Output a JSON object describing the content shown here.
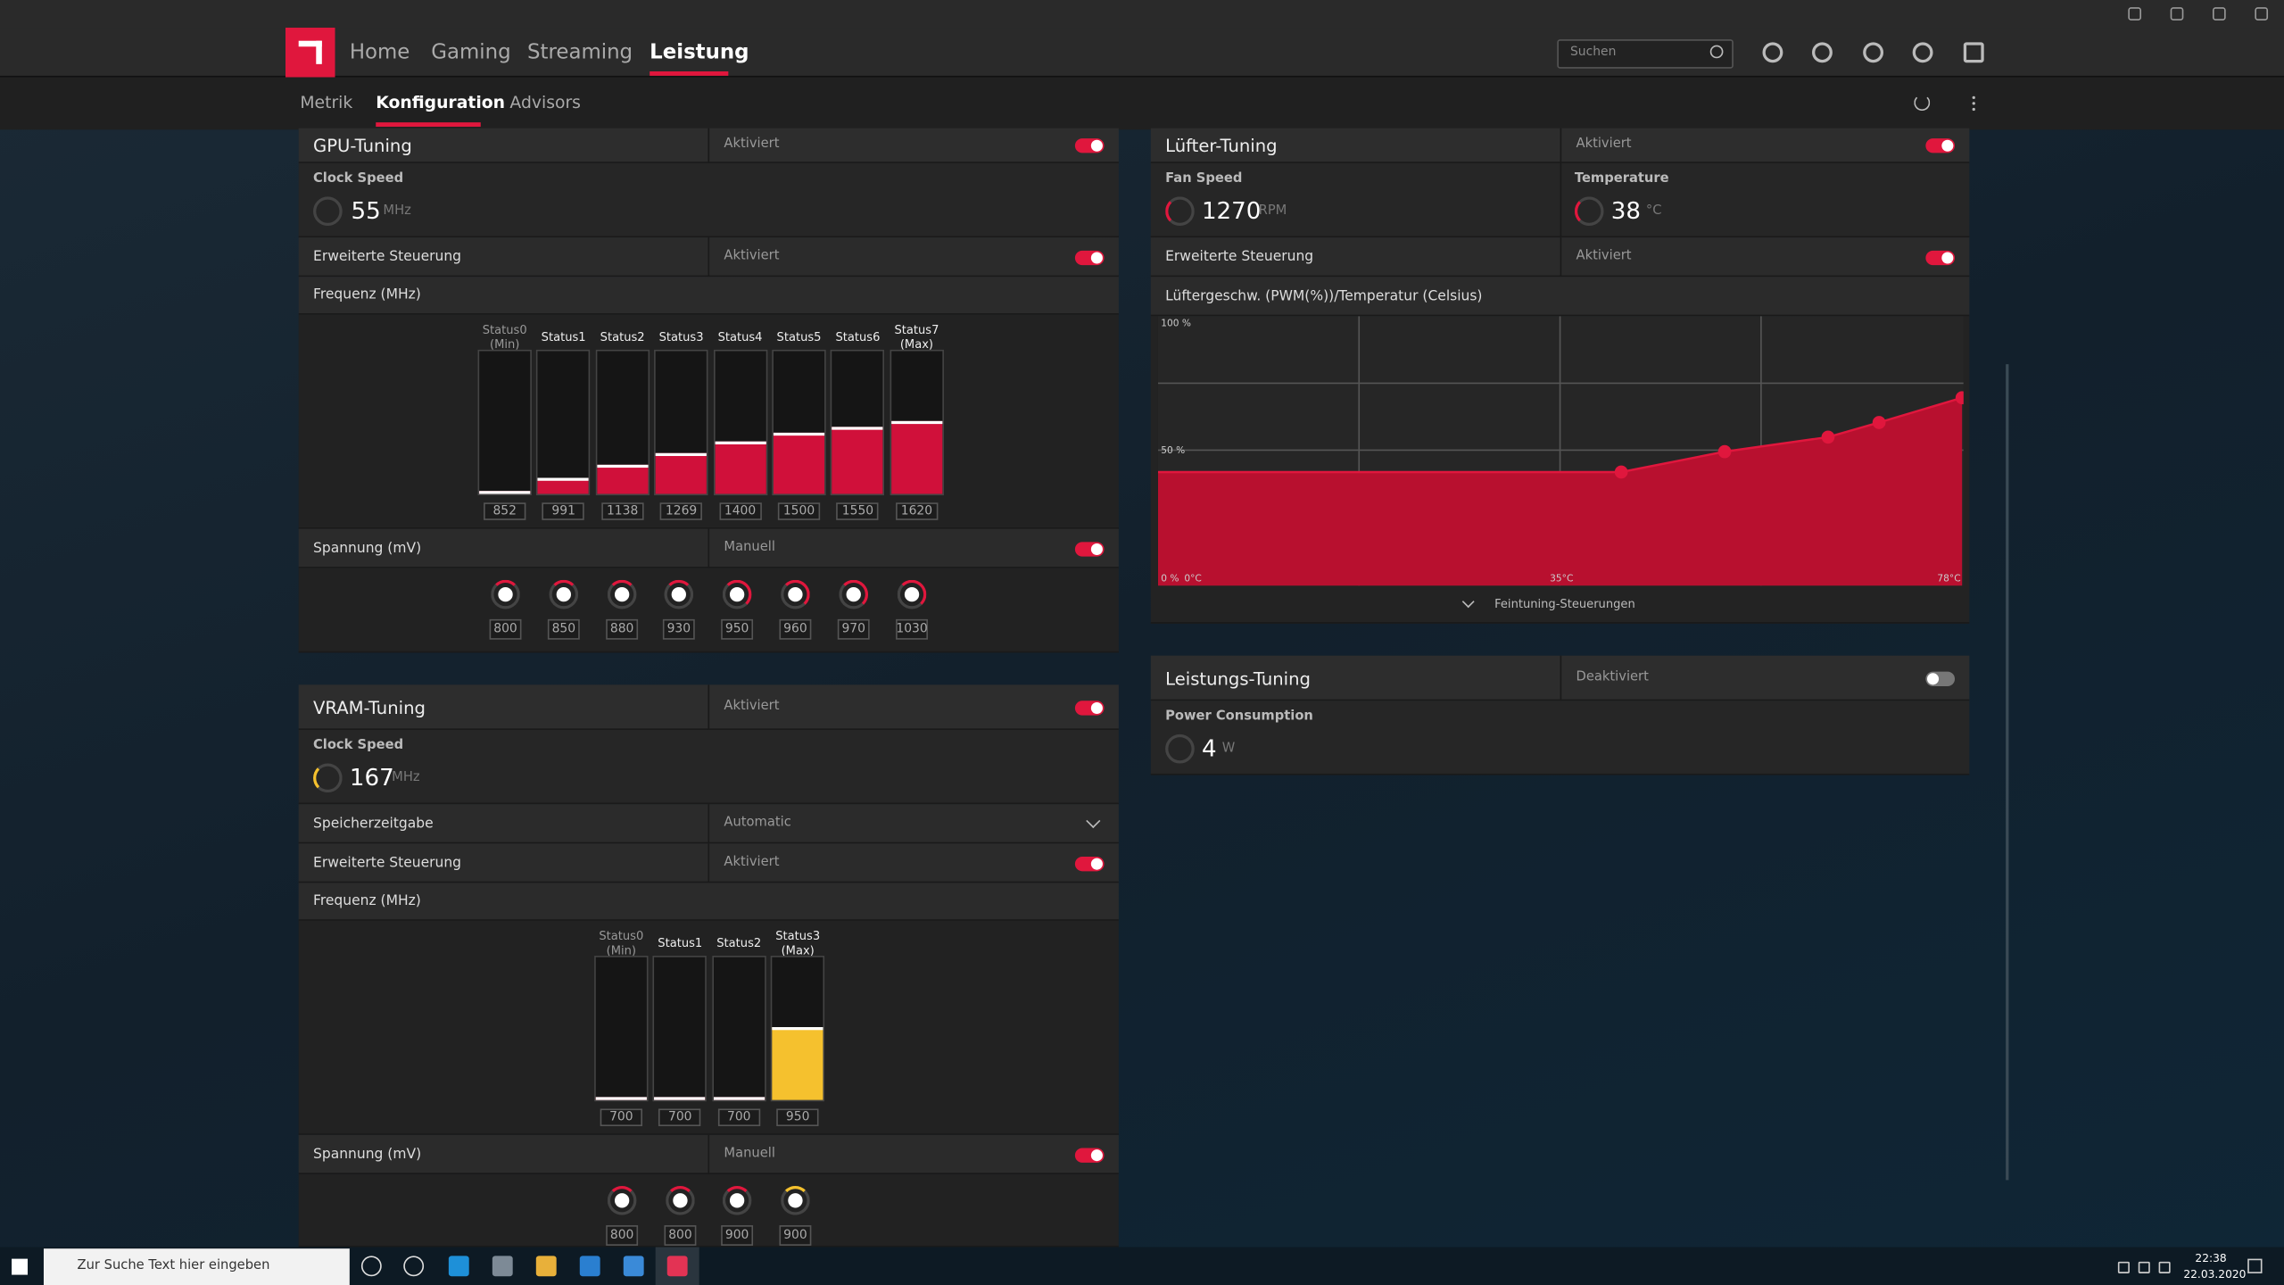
{
  "nav": {
    "tabs": [
      "Home",
      "Gaming",
      "Streaming",
      "Leistung"
    ],
    "search": "Suchen"
  },
  "subnav": {
    "tabs": [
      "Metrik",
      "Konfiguration",
      "Advisors"
    ]
  },
  "gpu_tuning": {
    "title": "GPU-Tuning",
    "status": "Aktiviert",
    "clock_label": "Clock Speed",
    "clock_value": 55,
    "clock_unit": "MHz",
    "advanced_label": "Erweiterte Steuerung",
    "advanced_status": "Aktiviert",
    "freq_label": "Frequenz (MHz)",
    "state_names": [
      "Status0",
      "Status1",
      "Status2",
      "Status3",
      "Status4",
      "Status5",
      "Status6",
      "Status7"
    ],
    "min_note": "(Min)",
    "max_note": "(Max)",
    "frequencies": [
      852,
      991,
      1138,
      1269,
      1400,
      1500,
      1550,
      1620
    ],
    "voltage_label": "Spannung (mV)",
    "voltage_mode": "Manuell",
    "voltages": [
      800,
      850,
      880,
      930,
      950,
      960,
      970,
      1030
    ]
  },
  "fan_tuning": {
    "title": "Lüfter-Tuning",
    "status": "Aktiviert",
    "fan_speed_label": "Fan Speed",
    "fan_speed": 1270,
    "fan_speed_unit": "RPM",
    "temperature_label": "Temperature",
    "temperature": 38,
    "temperature_unit": "°C",
    "advanced_label": "Erweiterte Steuerung",
    "advanced_status": "Aktiviert",
    "curve_label": "Lüftergeschw. (PWM(%))/Temperatur (Celsius)",
    "y_labels": [
      "100 %",
      "50 %",
      "0 %"
    ],
    "x_labels": [
      "0°C",
      "35°C",
      "78°C"
    ],
    "expand_label": "Feintuning-Steuerungen"
  },
  "power_tuning": {
    "title": "Leistungs-Tuning",
    "status": "Deaktiviert",
    "consumption_label": "Power Consumption",
    "consumption": 4,
    "consumption_unit": "W"
  },
  "vram_tuning": {
    "title": "VRAM-Tuning",
    "status": "Aktiviert",
    "clock_label": "Clock Speed",
    "clock_value": 167,
    "clock_unit": "MHz",
    "timing_label": "Speicherzeitgabe",
    "timing_value": "Automatic",
    "advanced_label": "Erweiterte Steuerung",
    "advanced_status": "Aktiviert",
    "freq_label": "Frequenz (MHz)",
    "state_names": [
      "Status0",
      "Status1",
      "Status2",
      "Status3"
    ],
    "min_note": "(Min)",
    "max_note": "(Max)",
    "frequencies": [
      700,
      700,
      700,
      950
    ],
    "voltage_label": "Spannung (mV)",
    "voltage_mode": "Manuell",
    "voltages": [
      800,
      800,
      900,
      900
    ]
  },
  "taskbar": {
    "search": "Zur Suche Text hier eingeben",
    "time": "22:38",
    "date": "22.03.2020"
  }
}
